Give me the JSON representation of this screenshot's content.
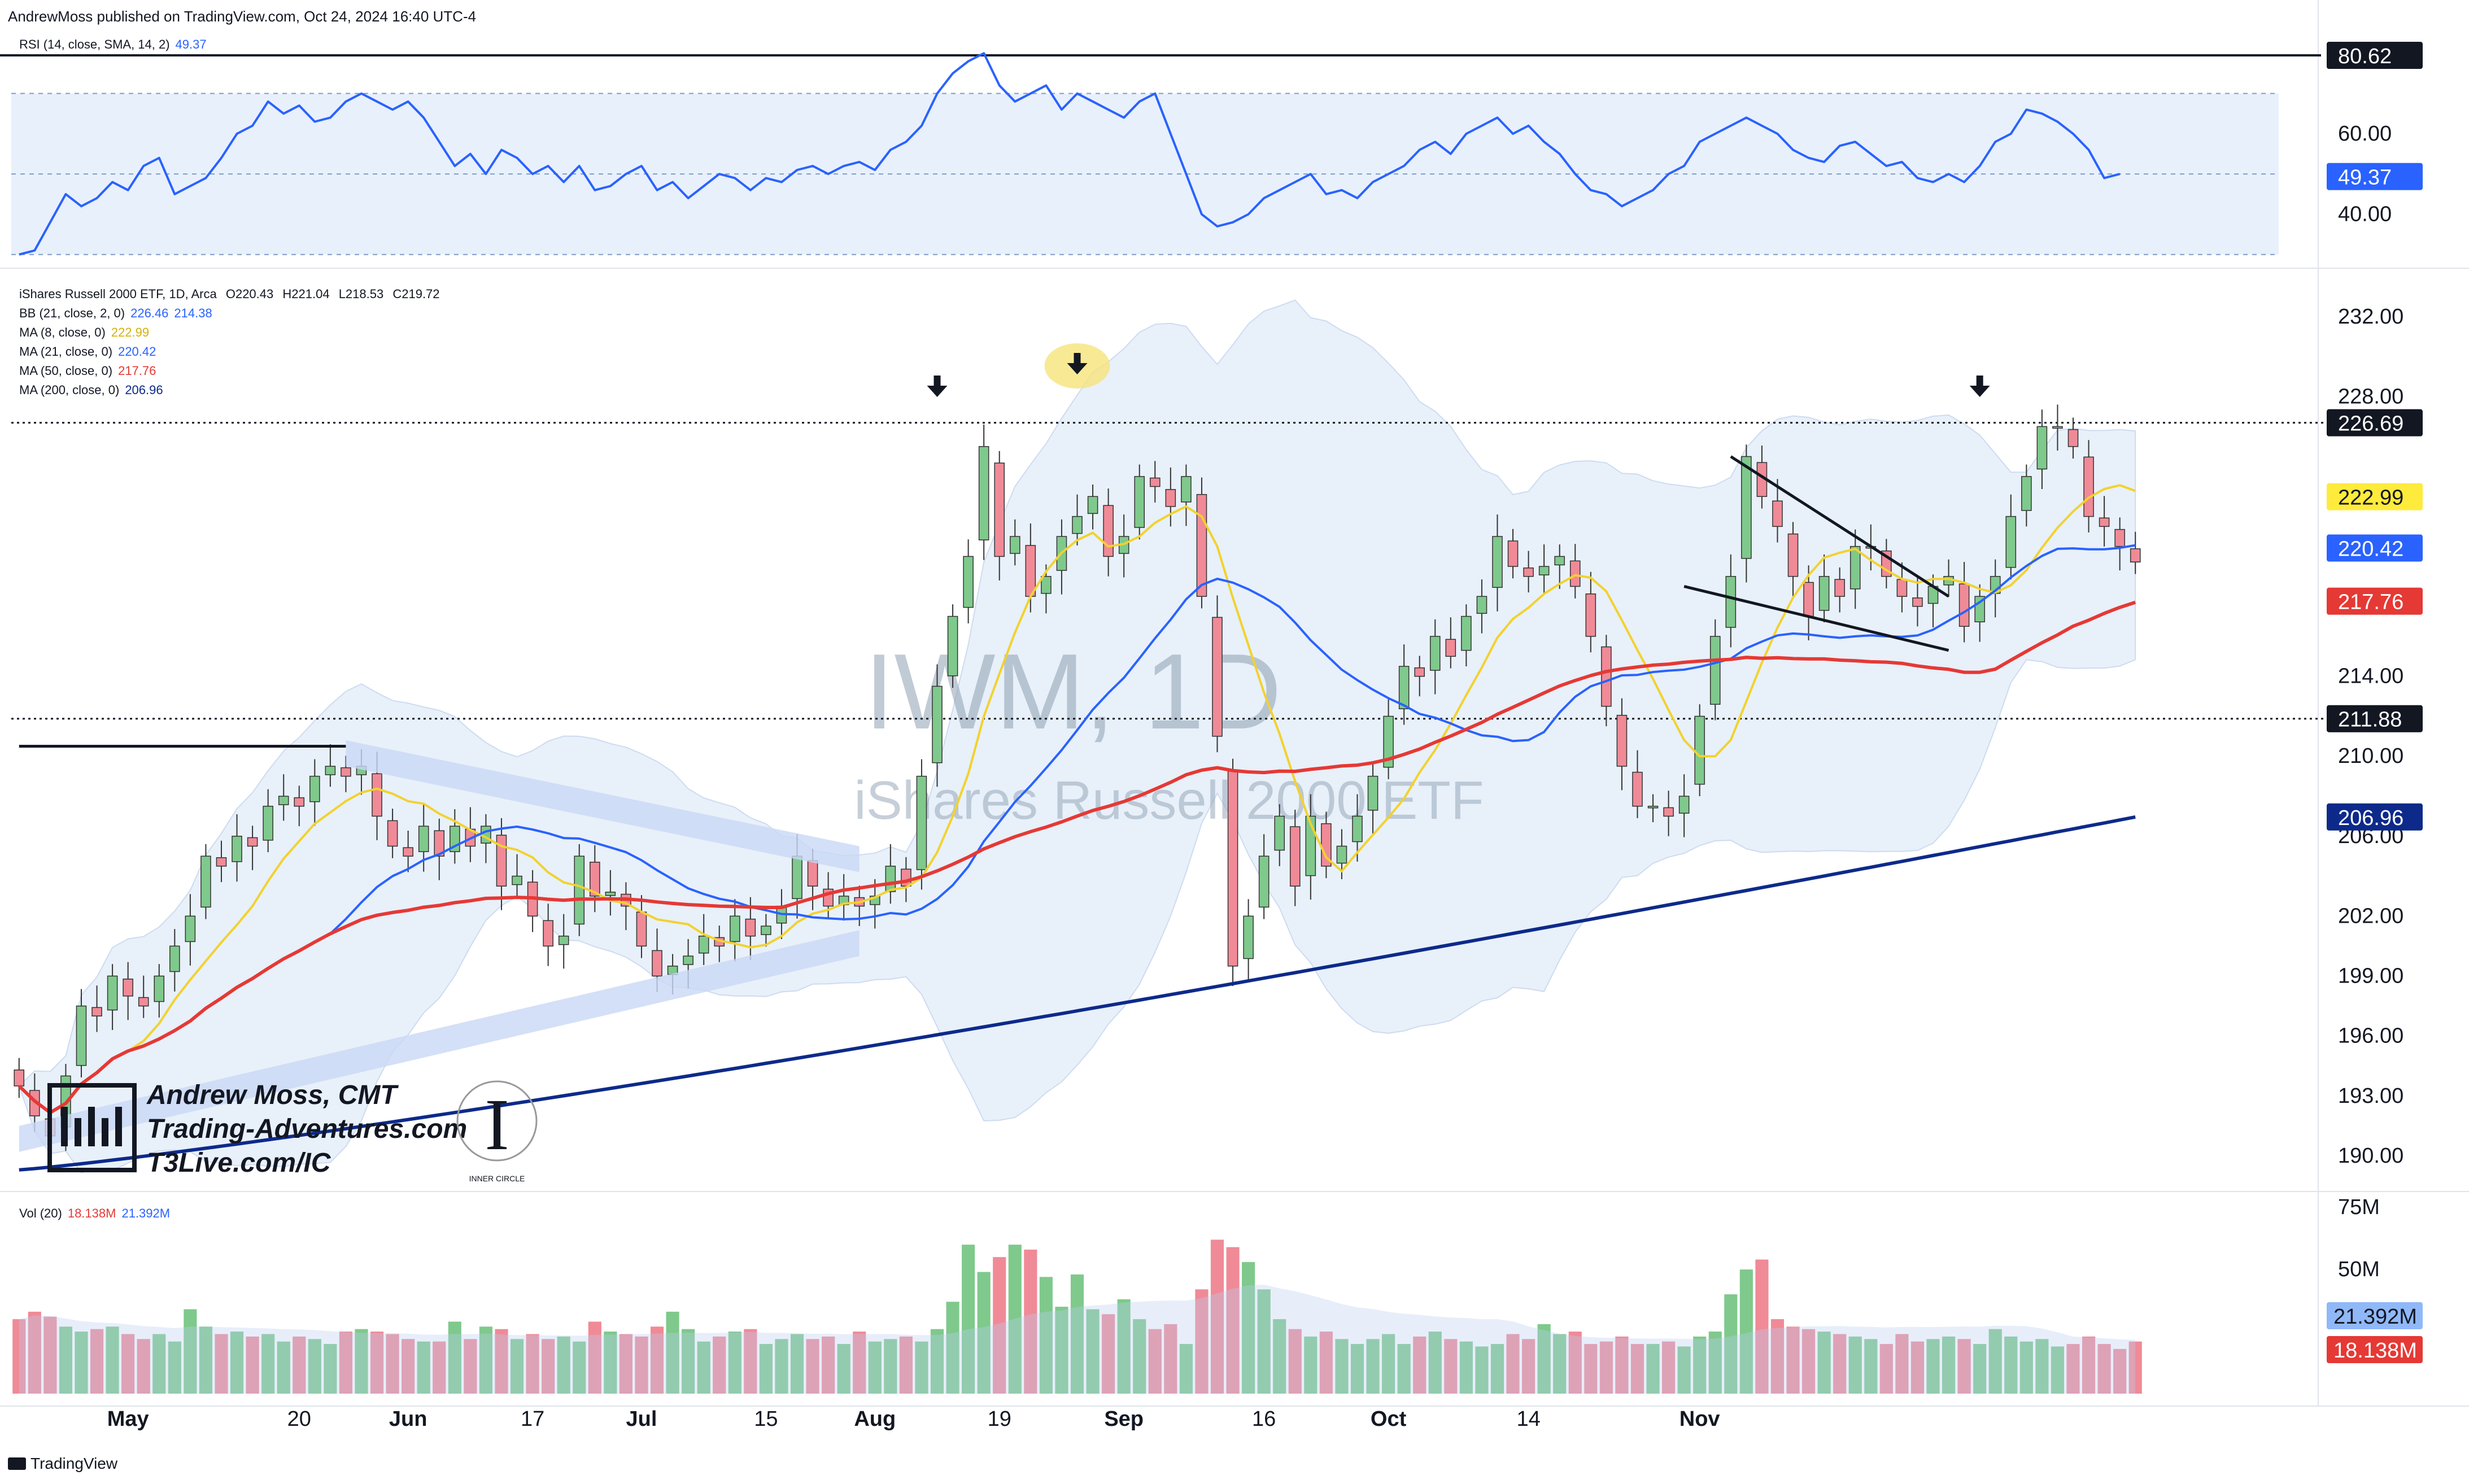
{
  "header": {
    "publisher": "AndrewMoss published on TradingView.com, Oct 24, 2024 16:40 UTC-4",
    "footer": "TradingView"
  },
  "rsi_legend": {
    "label": "RSI (14, close, SMA, 14, 2)",
    "value": "49.37"
  },
  "price_legend": {
    "title": "iShares Russell 2000 ETF, 1D, Arca",
    "o": "O220.43",
    "h": "H221.04",
    "l": "L218.53",
    "c": "C219.72",
    "bb": {
      "label": "BB (21, close, 2, 0)",
      "upper": "226.46",
      "lower": "214.38"
    },
    "ma8": {
      "label": "MA (8, close, 0)",
      "value": "222.99"
    },
    "ma21": {
      "label": "MA (21, close, 0)",
      "value": "220.42"
    },
    "ma50": {
      "label": "MA (50, close, 0)",
      "value": "217.76"
    },
    "ma200": {
      "label": "MA (200, close, 0)",
      "value": "206.96"
    }
  },
  "vol_legend": {
    "label": "Vol (20)",
    "v1": "18.138M",
    "v2": "21.392M"
  },
  "watermark": {
    "symbol": "IWM, 1D",
    "name": "iShares Russell 2000 ETF"
  },
  "branding": {
    "line1": "Andrew Moss, CMT",
    "line2": "Trading-Adventures.com",
    "line3": "T3Live.com/IC",
    "logo_text": "INNER CIRCLE"
  },
  "colors": {
    "up": "#7fc98c",
    "down": "#f08a97",
    "ma8": "#f2d22e",
    "ma21": "#2962ff",
    "ma50": "#e53935",
    "ma200": "#0d2a8a",
    "bb_fill": "#e6effa"
  },
  "chart_data": [
    {
      "type": "line",
      "title": "RSI (14, close, SMA, 14, 2)",
      "ylim": [
        28,
        82
      ],
      "levels": [
        70,
        50,
        30
      ],
      "y_tick_labels": [
        "60.00",
        "40.00"
      ],
      "price_labels": [
        "80.62",
        "49.37"
      ],
      "series": [
        {
          "name": "RSI",
          "values": [
            30,
            31,
            38,
            45,
            42,
            44,
            48,
            46,
            52,
            54,
            45,
            47,
            49,
            54,
            60,
            62,
            68,
            65,
            67,
            63,
            64,
            68,
            70,
            68,
            66,
            68,
            64,
            58,
            52,
            55,
            50,
            56,
            54,
            50,
            52,
            48,
            52,
            46,
            47,
            50,
            52,
            46,
            48,
            44,
            47,
            50,
            49,
            46,
            49,
            48,
            51,
            52,
            50,
            52,
            53,
            51,
            56,
            58,
            62,
            70,
            75,
            78,
            80,
            72,
            68,
            70,
            72,
            66,
            70,
            68,
            66,
            64,
            68,
            70,
            60,
            50,
            40,
            37,
            38,
            40,
            44,
            46,
            48,
            50,
            45,
            46,
            44,
            48,
            50,
            52,
            56,
            58,
            55,
            60,
            62,
            64,
            60,
            62,
            58,
            55,
            50,
            46,
            45,
            42,
            44,
            46,
            50,
            52,
            58,
            60,
            62,
            64,
            62,
            60,
            56,
            54,
            53,
            57,
            58,
            55,
            52,
            53,
            49,
            48,
            50,
            48,
            52,
            58,
            60,
            66,
            65,
            63,
            60,
            56,
            49,
            50
          ],
          "color": "#2962ff"
        }
      ]
    },
    {
      "type": "candlestick",
      "title": "iShares Russell 2000 ETF, 1D, Arca",
      "ylim": [
        188.5,
        234
      ],
      "y_tick_labels": [
        "232.00",
        "228.00",
        "214.00",
        "210.00",
        "206.00",
        "202.00",
        "199.00",
        "196.00",
        "193.00",
        "190.00"
      ],
      "horizontal_levels": [
        226.69,
        211.88
      ],
      "price_labels": [
        {
          "value": "226.69",
          "style": "black"
        },
        {
          "value": "222.99",
          "style": "yellow"
        },
        {
          "value": "220.42",
          "style": "blue"
        },
        {
          "value": "217.76",
          "style": "red"
        },
        {
          "value": "211.88",
          "style": "black"
        },
        {
          "value": "206.96",
          "style": "navy"
        }
      ],
      "x_tick_labels": [
        "May",
        "20",
        "Jun",
        "17",
        "Jul",
        "15",
        "Aug",
        "19",
        "Sep",
        "16",
        "Oct",
        "14",
        "Nov"
      ],
      "close": [
        193.5,
        192,
        191,
        194,
        197.5,
        197,
        199,
        198,
        197.5,
        199,
        200.5,
        202,
        205,
        204.5,
        206,
        205.5,
        207.5,
        208,
        207.5,
        209,
        209.5,
        209,
        209.5,
        207,
        205.5,
        205,
        206.5,
        205,
        206.5,
        205.5,
        206.5,
        203.5,
        204,
        202,
        200.5,
        201,
        205,
        203,
        203.2,
        202.5,
        200.5,
        199,
        199.5,
        200,
        201,
        200.5,
        202,
        201,
        201.5,
        202.5,
        205,
        203.5,
        202.5,
        203,
        202.5,
        203,
        204.5,
        203.5,
        209,
        213.5,
        217,
        220,
        225.5,
        220,
        221,
        218,
        219,
        221,
        222,
        223,
        220,
        221,
        224,
        223.5,
        222.5,
        224,
        218,
        211,
        199.5,
        202,
        205,
        207,
        203.5,
        207,
        204.5,
        205.5,
        207,
        209,
        212,
        214.5,
        214,
        216,
        215,
        217,
        218,
        221,
        219.5,
        219,
        219.5,
        220,
        218.5,
        216,
        212.5,
        209.5,
        207.5,
        207.5,
        207,
        208,
        212,
        216,
        219,
        225,
        223,
        221.5,
        219,
        217,
        219,
        218,
        220.5,
        220.5,
        219,
        218,
        217.5,
        218.5,
        219,
        216.5,
        218,
        219,
        222,
        224,
        226.5,
        226.5,
        225.5,
        222,
        221.5,
        220.5,
        219.72
      ],
      "series": [
        {
          "name": "MA (8, close, 0)",
          "value": "222.99"
        },
        {
          "name": "MA (21, close, 0)",
          "value": "220.42"
        },
        {
          "name": "MA (50, close, 0)",
          "value": "217.76"
        },
        {
          "name": "MA (200, close, 0)",
          "value": "206.96"
        },
        {
          "name": "BB (21, close, 2, 0)",
          "value": "226.46 214.38"
        }
      ]
    },
    {
      "type": "bar",
      "title": "Vol (20)",
      "ylim": [
        0,
        78
      ],
      "y_tick_labels": [
        "75M",
        "50M"
      ],
      "price_labels": [
        "21.392M",
        "18.138M"
      ],
      "values": [
        30,
        33,
        31,
        27,
        25,
        26,
        27,
        24,
        22,
        24,
        21,
        34,
        27,
        24,
        25,
        23,
        24,
        21,
        23,
        22,
        20,
        25,
        26,
        25,
        24,
        22,
        21,
        21,
        29,
        22,
        27,
        26,
        22,
        24,
        22,
        23,
        21,
        29,
        25,
        24,
        23,
        27,
        33,
        26,
        21,
        23,
        25,
        26,
        20,
        22,
        24,
        22,
        23,
        20,
        25,
        21,
        22,
        23,
        21,
        26,
        37,
        60,
        49,
        55,
        60,
        58,
        47,
        35,
        48,
        34,
        32,
        38,
        30,
        26,
        28,
        20,
        42,
        62,
        59,
        53,
        42,
        30,
        26,
        23,
        25,
        22,
        20,
        22,
        24,
        20,
        23,
        25,
        22,
        21,
        19,
        20,
        24,
        22,
        28,
        24,
        25,
        20,
        21,
        23,
        20,
        20,
        21,
        19,
        23,
        25,
        40,
        50,
        54,
        30,
        27,
        26,
        25,
        24,
        23,
        22,
        20,
        24,
        21,
        22,
        23,
        22,
        20,
        26,
        23,
        21,
        22,
        19,
        20,
        23,
        20,
        18,
        21
      ]
    }
  ]
}
